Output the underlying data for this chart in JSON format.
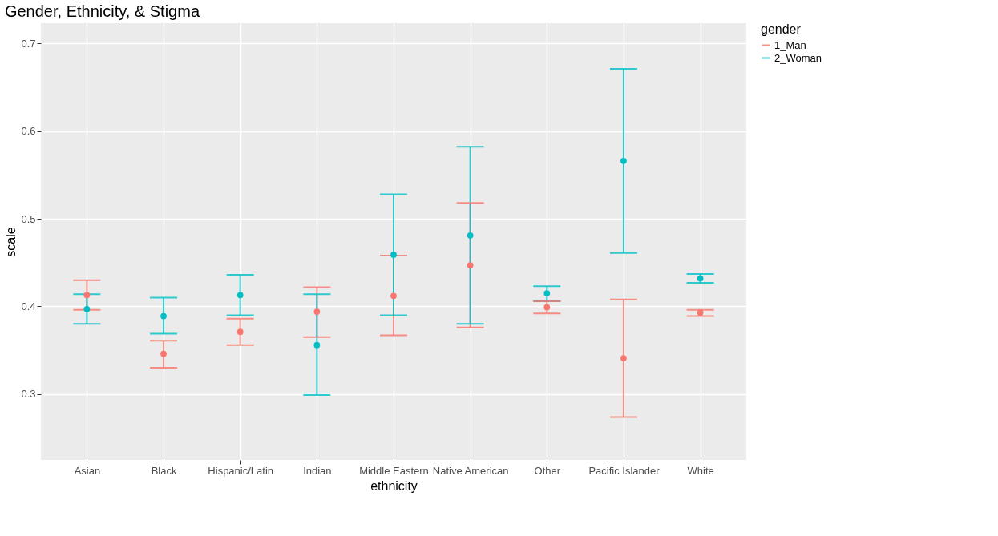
{
  "chart_data": {
    "type": "scatter",
    "title": "Gender, Ethnicity, & Stigma",
    "xlabel": "ethnicity",
    "ylabel": "scale",
    "legend_title": "gender",
    "legend": "right",
    "grid": true,
    "marker": "circle",
    "categories": [
      "Asian",
      "Black",
      "Hispanic/Latin",
      "Indian",
      "Middle Eastern",
      "Native American",
      "Other",
      "Pacific Islander",
      "White"
    ],
    "ylim": [
      0.225,
      0.723
    ],
    "yticks": [
      0.3,
      0.4,
      0.5,
      0.6,
      0.7
    ],
    "series": [
      {
        "name": "1_Man",
        "color": "#f8766d",
        "values": [
          0.413,
          0.346,
          0.371,
          0.394,
          0.412,
          0.447,
          0.399,
          0.341,
          0.393
        ],
        "errors": [
          [
            0.396,
            0.43
          ],
          [
            0.33,
            0.361
          ],
          [
            0.356,
            0.386
          ],
          [
            0.365,
            0.422
          ],
          [
            0.367,
            0.458
          ],
          [
            0.376,
            0.518
          ],
          [
            0.392,
            0.406
          ],
          [
            0.274,
            0.408
          ],
          [
            0.389,
            0.396
          ]
        ]
      },
      {
        "name": "2_Woman",
        "color": "#00bfc4",
        "values": [
          0.397,
          0.389,
          0.413,
          0.356,
          0.459,
          0.481,
          0.415,
          0.566,
          0.432
        ],
        "errors": [
          [
            0.38,
            0.414
          ],
          [
            0.369,
            0.41
          ],
          [
            0.39,
            0.436
          ],
          [
            0.299,
            0.414
          ],
          [
            0.39,
            0.528
          ],
          [
            0.38,
            0.582
          ],
          [
            0.406,
            0.423
          ],
          [
            0.461,
            0.671
          ],
          [
            0.427,
            0.437
          ]
        ]
      }
    ]
  }
}
